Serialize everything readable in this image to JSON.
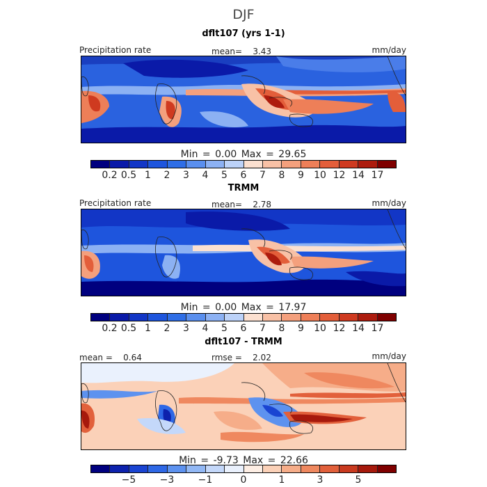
{
  "season": "DJF",
  "panels": [
    {
      "title": "dflt107 (yrs 1-1)",
      "left_label": "Precipitation rate",
      "center_label": "mean=    3.43",
      "right_label": "mm/day",
      "min_label": "Min =",
      "min_value": "0.00",
      "max_label": "Max =",
      "max_value": "29.65",
      "colorbar": "precip"
    },
    {
      "title": "TRMM",
      "left_label": "Precipitation rate",
      "center_label": "mean=    2.78",
      "right_label": "mm/day",
      "min_label": "Min =",
      "min_value": "0.00",
      "max_label": "Max =",
      "max_value": "17.97",
      "colorbar": "precip"
    },
    {
      "title": "dflt107 - TRMM",
      "left_label": "mean =    0.64",
      "center_label": "rmse =    2.02",
      "right_label": "mm/day",
      "min_label": "Min =",
      "min_value": "-9.73",
      "max_label": "Max =",
      "max_value": "22.66",
      "colorbar": "diff"
    }
  ],
  "colorbars": {
    "precip": {
      "colors": [
        "#00007f",
        "#0a1aa8",
        "#1236c6",
        "#1e55dd",
        "#2f6ee6",
        "#5a8fee",
        "#8cb1f3",
        "#bcd2f8",
        "#fbe0d0",
        "#f8c1a6",
        "#f4a07d",
        "#ee7f58",
        "#e35e3a",
        "#cf3a20",
        "#ad1c0e",
        "#7f0000"
      ],
      "ticks": [
        "0.2",
        "0.5",
        "1",
        "2",
        "3",
        "4",
        "5",
        "6",
        "7",
        "8",
        "9",
        "10",
        "12",
        "14",
        "17"
      ]
    },
    "diff": {
      "colors": [
        "#00007f",
        "#0d22ad",
        "#1a44d2",
        "#2e68e6",
        "#5d92ef",
        "#92b8f5",
        "#c4d8fa",
        "#eaf1fd",
        "#fdeee4",
        "#fbd1b8",
        "#f6ad89",
        "#ef885f",
        "#e2603b",
        "#c93a1f",
        "#a6190c",
        "#7f0000"
      ],
      "ticks": [
        "−5",
        "−3",
        "−1",
        "0",
        "1",
        "3",
        "5"
      ],
      "tick_slots": [
        2,
        4,
        6,
        8,
        10,
        12,
        14
      ]
    }
  }
}
